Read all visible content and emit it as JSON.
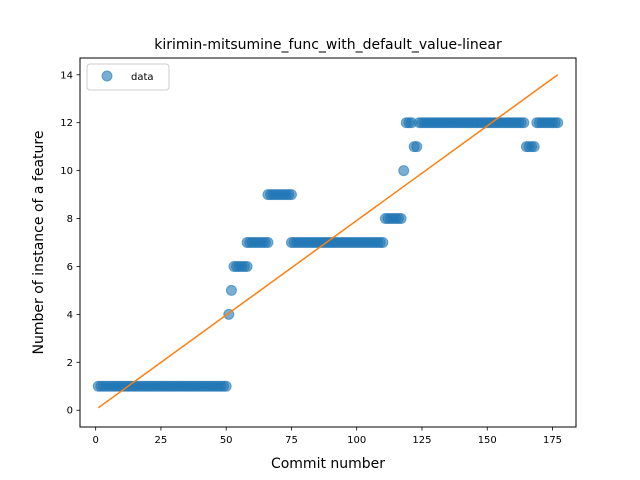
{
  "chart_data": {
    "type": "scatter",
    "title": "kirimin-mitsumine_func_with_default_value-linear",
    "xlabel": "Commit number",
    "ylabel": "Number of instance of a feature",
    "xlim": [
      -6,
      184
    ],
    "ylim": [
      -0.7,
      14.7
    ],
    "xticks": [
      0,
      25,
      50,
      75,
      100,
      125,
      150,
      175
    ],
    "yticks": [
      0,
      2,
      4,
      6,
      8,
      10,
      12,
      14
    ],
    "grid": false,
    "legend_position": "top-left",
    "legend": [
      "data"
    ],
    "colors": {
      "data": "#1f77b4",
      "fit": "#ff7f0e"
    },
    "series": [
      {
        "name": "data",
        "kind": "scatter",
        "segments": [
          {
            "x_start": 1,
            "x_end": 50,
            "y": 1
          },
          {
            "x_start": 51,
            "x_end": 51,
            "y": 4
          },
          {
            "x_start": 52,
            "x_end": 52,
            "y": 5
          },
          {
            "x_start": 53,
            "x_end": 58,
            "y": 6
          },
          {
            "x_start": 58,
            "x_end": 66,
            "y": 7
          },
          {
            "x_start": 66,
            "x_end": 75,
            "y": 9
          },
          {
            "x_start": 75,
            "x_end": 110,
            "y": 7
          },
          {
            "x_start": 111,
            "x_end": 117,
            "y": 8
          },
          {
            "x_start": 118,
            "x_end": 118,
            "y": 10
          },
          {
            "x_start": 119,
            "x_end": 121,
            "y": 12
          },
          {
            "x_start": 122,
            "x_end": 123,
            "y": 11
          },
          {
            "x_start": 124,
            "x_end": 164,
            "y": 12
          },
          {
            "x_start": 165,
            "x_end": 168,
            "y": 11
          },
          {
            "x_start": 169,
            "x_end": 177,
            "y": 12
          }
        ]
      },
      {
        "kind": "line",
        "x": [
          1,
          177
        ],
        "y": [
          0.1,
          14
        ]
      }
    ]
  }
}
